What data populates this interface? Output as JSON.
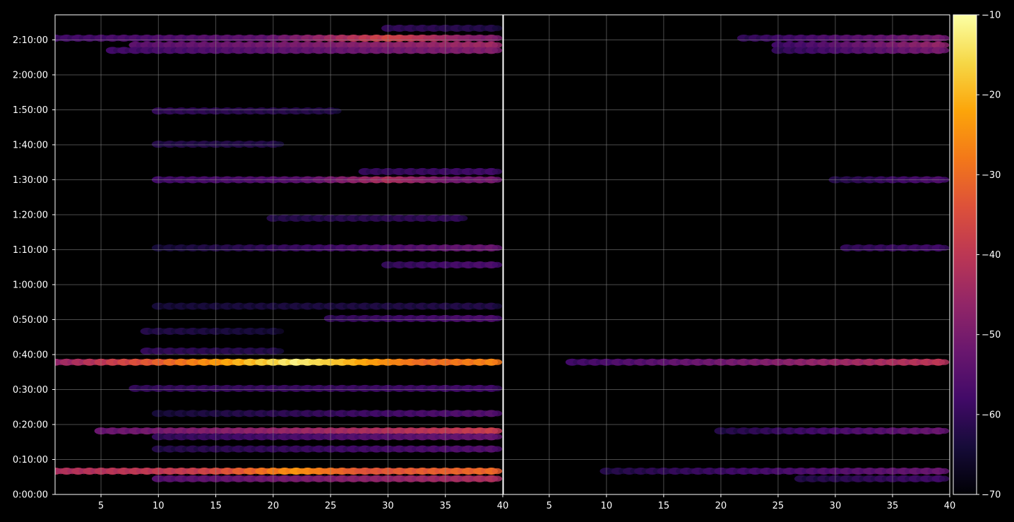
{
  "chart_data": {
    "type": "heatmap",
    "style": {
      "background": "#000000",
      "grid": true,
      "grid_color": "#888888",
      "colormap": "inferno"
    },
    "shared_y": {
      "tick_labels": [
        "0:00:00",
        "0:10:00",
        "0:20:00",
        "0:30:00",
        "0:40:00",
        "0:50:00",
        "1:00:00",
        "1:10:00",
        "1:20:00",
        "1:30:00",
        "1:40:00",
        "1:50:00",
        "2:00:00",
        "2:10:00"
      ],
      "tick_seconds": [
        0,
        600,
        1200,
        1800,
        2400,
        3000,
        3600,
        4200,
        4800,
        5400,
        6000,
        6600,
        7200,
        7800
      ],
      "range_seconds": [
        0,
        8230
      ]
    },
    "panels": [
      {
        "name": "left",
        "x_ticks": [
          "5",
          "10",
          "15",
          "20",
          "25",
          "30",
          "35",
          "40"
        ],
        "x_tick_values": [
          5,
          10,
          15,
          20,
          25,
          30,
          35,
          40
        ],
        "x_range": [
          1,
          40
        ]
      },
      {
        "name": "right",
        "x_ticks": [
          "5",
          "10",
          "15",
          "20",
          "25",
          "30",
          "35",
          "40"
        ],
        "x_tick_values": [
          5,
          10,
          15,
          20,
          25,
          30,
          35,
          40
        ],
        "x_range": [
          1,
          40
        ]
      }
    ],
    "colorbar": {
      "min": -70,
      "max": -10,
      "tick_labels": [
        "−70",
        "−60",
        "−50",
        "−40",
        "−30",
        "−20",
        "−10"
      ],
      "tick_values": [
        -70,
        -60,
        -50,
        -40,
        -30,
        -20,
        -10
      ]
    },
    "bands": [
      {
        "panel": 0,
        "t": 400,
        "x0": 1,
        "x1": 39,
        "v0": -42,
        "v1": -30,
        "peak_at": 22,
        "peak": -24
      },
      {
        "panel": 0,
        "t": 270,
        "x0": 10,
        "x1": 39,
        "v0": -55,
        "v1": -42
      },
      {
        "panel": 0,
        "t": 1090,
        "x0": 5,
        "x1": 39,
        "v0": -52,
        "v1": -38
      },
      {
        "panel": 0,
        "t": 990,
        "x0": 10,
        "x1": 39,
        "v0": -60,
        "v1": -52
      },
      {
        "panel": 0,
        "t": 780,
        "x0": 10,
        "x1": 39,
        "v0": -62,
        "v1": -55
      },
      {
        "panel": 0,
        "t": 1390,
        "x0": 10,
        "x1": 39,
        "v0": -64,
        "v1": -55
      },
      {
        "panel": 0,
        "t": 1820,
        "x0": 8,
        "x1": 39,
        "v0": -60,
        "v1": -58
      },
      {
        "panel": 0,
        "t": 2270,
        "x0": 1,
        "x1": 39,
        "v0": -52,
        "v1": -26,
        "peak_at": 22,
        "peak": -12
      },
      {
        "panel": 0,
        "t": 2460,
        "x0": 9,
        "x1": 20,
        "v0": -60,
        "v1": -62
      },
      {
        "panel": 0,
        "t": 2800,
        "x0": 9,
        "x1": 20,
        "v0": -62,
        "v1": -64
      },
      {
        "panel": 0,
        "t": 3020,
        "x0": 25,
        "x1": 39,
        "v0": -60,
        "v1": -56
      },
      {
        "panel": 0,
        "t": 3230,
        "x0": 10,
        "x1": 39,
        "v0": -64,
        "v1": -62
      },
      {
        "panel": 0,
        "t": 3940,
        "x0": 30,
        "x1": 39,
        "v0": -60,
        "v1": -56
      },
      {
        "panel": 0,
        "t": 4230,
        "x0": 10,
        "x1": 39,
        "v0": -64,
        "v1": -52
      },
      {
        "panel": 0,
        "t": 4740,
        "x0": 20,
        "x1": 36,
        "v0": -62,
        "v1": -60
      },
      {
        "panel": 0,
        "t": 5400,
        "x0": 10,
        "x1": 39,
        "v0": -58,
        "v1": -50,
        "peak_at": 30,
        "peak": -42
      },
      {
        "panel": 0,
        "t": 5540,
        "x0": 28,
        "x1": 39,
        "v0": -60,
        "v1": -58
      },
      {
        "panel": 0,
        "t": 6010,
        "x0": 10,
        "x1": 20,
        "v0": -62,
        "v1": -62
      },
      {
        "panel": 0,
        "t": 6580,
        "x0": 10,
        "x1": 25,
        "v0": -60,
        "v1": -62
      },
      {
        "panel": 0,
        "t": 7830,
        "x0": 1,
        "x1": 39,
        "v0": -58,
        "v1": -48,
        "peak_at": 30,
        "peak": -36
      },
      {
        "panel": 0,
        "t": 7710,
        "x0": 8,
        "x1": 39,
        "v0": -54,
        "v1": -44
      },
      {
        "panel": 0,
        "t": 7620,
        "x0": 6,
        "x1": 39,
        "v0": -58,
        "v1": -48
      },
      {
        "panel": 0,
        "t": 8000,
        "x0": 30,
        "x1": 39,
        "v0": -60,
        "v1": -62
      },
      {
        "panel": 1,
        "t": 400,
        "x0": 10,
        "x1": 39,
        "v0": -62,
        "v1": -52
      },
      {
        "panel": 1,
        "t": 270,
        "x0": 27,
        "x1": 39,
        "v0": -62,
        "v1": -58
      },
      {
        "panel": 1,
        "t": 1090,
        "x0": 20,
        "x1": 39,
        "v0": -62,
        "v1": -52
      },
      {
        "panel": 1,
        "t": 2270,
        "x0": 7,
        "x1": 39,
        "v0": -58,
        "v1": -40
      },
      {
        "panel": 1,
        "t": 4230,
        "x0": 31,
        "x1": 39,
        "v0": -60,
        "v1": -58
      },
      {
        "panel": 1,
        "t": 5400,
        "x0": 30,
        "x1": 39,
        "v0": -62,
        "v1": -56
      },
      {
        "panel": 1,
        "t": 7830,
        "x0": 22,
        "x1": 39,
        "v0": -60,
        "v1": -50
      },
      {
        "panel": 1,
        "t": 7710,
        "x0": 25,
        "x1": 39,
        "v0": -58,
        "v1": -46
      },
      {
        "panel": 1,
        "t": 7620,
        "x0": 25,
        "x1": 39,
        "v0": -60,
        "v1": -50
      }
    ]
  }
}
